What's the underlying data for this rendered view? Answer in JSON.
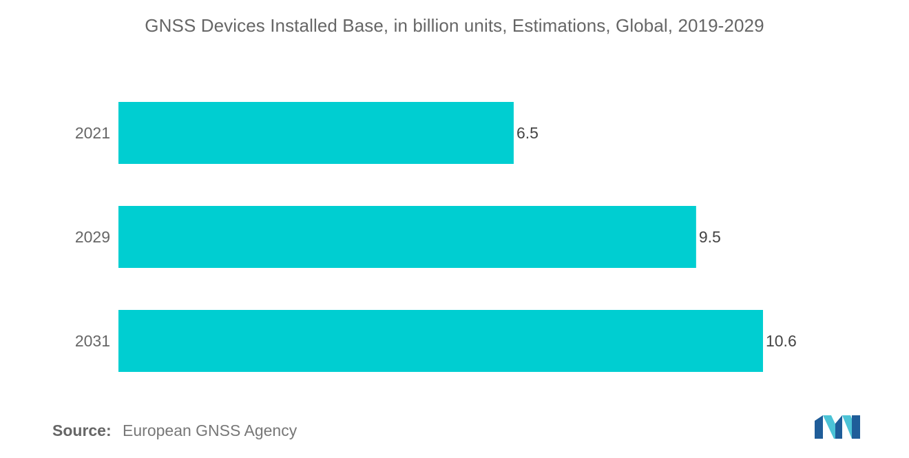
{
  "colors": {
    "bar": "#00CED1",
    "text": "#666666",
    "logo_dark": "#1f5d99",
    "logo_light": "#4cc3d6"
  },
  "chart_data": {
    "type": "bar",
    "orientation": "horizontal",
    "title": "GNSS Devices Installed Base, in billion units, Estimations, Global, 2019-2029",
    "xlabel": "",
    "ylabel": "",
    "categories": [
      "2021",
      "2029",
      "2031"
    ],
    "values": [
      6.5,
      9.5,
      10.6
    ],
    "value_labels": [
      "6.5",
      "9.5",
      "10.6"
    ],
    "xlim": [
      0,
      12
    ],
    "grid": false,
    "legend": "none"
  },
  "source": {
    "label": "Source:",
    "text": "European GNSS Agency"
  },
  "logo": {
    "icon": "mordor-intelligence-logo-icon"
  }
}
